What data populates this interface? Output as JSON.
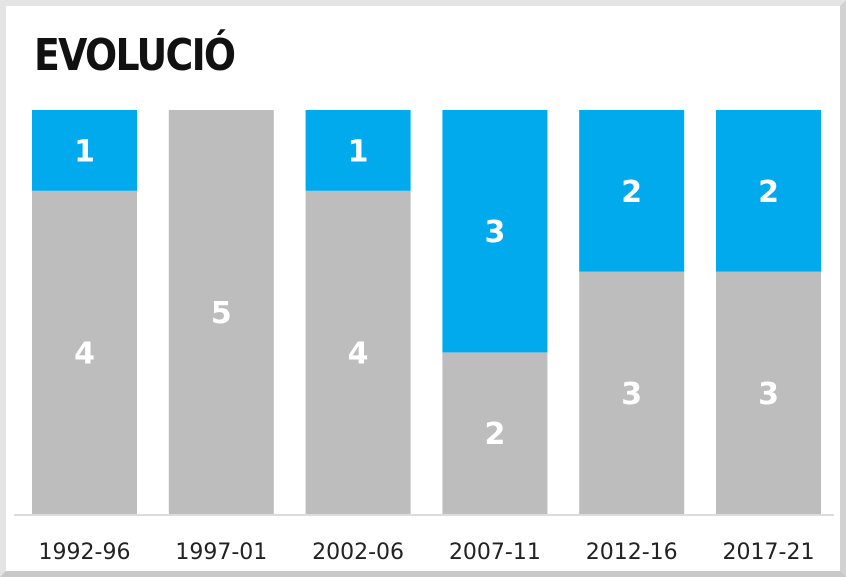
{
  "title": "EVOLUCIÓ",
  "colors": {
    "bottom_segment": "#bdbdbd",
    "top_segment": "#00aaec",
    "label": "#ffffff",
    "axis_line": "#dcdcdc"
  },
  "chart_data": {
    "type": "bar",
    "stacked": true,
    "title": "EVOLUCIÓ",
    "xlabel": "",
    "ylabel": "",
    "categories": [
      "1992-96",
      "1997-01",
      "2002-06",
      "2007-11",
      "2012-16",
      "2017-21"
    ],
    "series": [
      {
        "values": [
          4,
          5,
          4,
          2,
          3,
          3
        ],
        "color": "#bdbdbd"
      },
      {
        "values": [
          1,
          0,
          1,
          3,
          2,
          2
        ],
        "color": "#00aaec"
      }
    ],
    "ylim": [
      0,
      5
    ],
    "grid": false,
    "legend": "none",
    "data_labels": true
  }
}
